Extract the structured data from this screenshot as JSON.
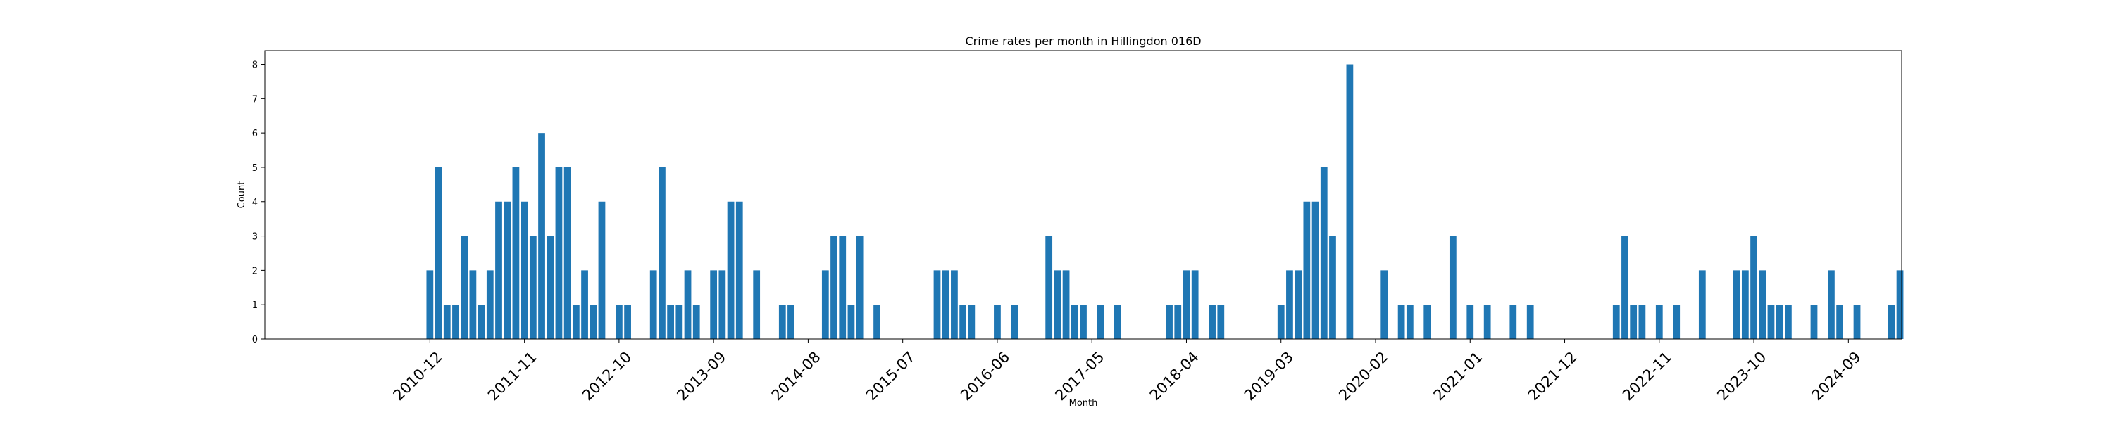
{
  "chart_data": {
    "type": "bar",
    "title": "Crime rates per month in Hillingdon 016D",
    "xlabel": "Month",
    "ylabel": "Count",
    "ylim": [
      0,
      8.4
    ],
    "yticks": [
      0,
      1,
      2,
      3,
      4,
      5,
      6,
      7,
      8
    ],
    "xlim": [
      -19.2,
      171.2
    ],
    "color": "#1f77b4",
    "grid": false,
    "legend": "none",
    "xtick_labels": [
      {
        "label": "2010-12",
        "index": 0
      },
      {
        "label": "2011-11",
        "index": 11
      },
      {
        "label": "2012-10",
        "index": 22
      },
      {
        "label": "2013-09",
        "index": 33
      },
      {
        "label": "2014-08",
        "index": 44
      },
      {
        "label": "2015-07",
        "index": 55
      },
      {
        "label": "2016-06",
        "index": 66
      },
      {
        "label": "2017-05",
        "index": 77
      },
      {
        "label": "2018-04",
        "index": 88
      },
      {
        "label": "2019-03",
        "index": 99
      },
      {
        "label": "2020-02",
        "index": 110
      },
      {
        "label": "2021-01",
        "index": 121
      },
      {
        "label": "2021-12",
        "index": 132
      },
      {
        "label": "2022-11",
        "index": 143
      },
      {
        "label": "2023-10",
        "index": 154
      },
      {
        "label": "2024-09",
        "index": 165
      }
    ],
    "first_month": "2010-12",
    "values": [
      2,
      5,
      1,
      1,
      3,
      2,
      1,
      2,
      4,
      4,
      5,
      4,
      3,
      6,
      3,
      5,
      5,
      1,
      2,
      1,
      4,
      0,
      1,
      1,
      0,
      0,
      2,
      5,
      1,
      1,
      2,
      1,
      0,
      2,
      2,
      4,
      4,
      0,
      2,
      0,
      0,
      1,
      1,
      0,
      0,
      0,
      2,
      3,
      3,
      1,
      3,
      0,
      1,
      0,
      0,
      0,
      0,
      0,
      0,
      2,
      2,
      2,
      1,
      1,
      0,
      0,
      1,
      0,
      1,
      0,
      0,
      0,
      3,
      2,
      2,
      1,
      1,
      0,
      1,
      0,
      1,
      0,
      0,
      0,
      0,
      0,
      1,
      1,
      2,
      2,
      0,
      1,
      1,
      0,
      0,
      0,
      0,
      0,
      0,
      1,
      2,
      2,
      4,
      4,
      5,
      3,
      0,
      8,
      0,
      0,
      0,
      2,
      0,
      1,
      1,
      0,
      1,
      0,
      0,
      3,
      0,
      1,
      0,
      1,
      0,
      0,
      1,
      0,
      1,
      0,
      0,
      0,
      0,
      0,
      0,
      0,
      0,
      0,
      1,
      3,
      1,
      1,
      0,
      1,
      0,
      1,
      0,
      0,
      2,
      0,
      0,
      0,
      2,
      2,
      3,
      2,
      1,
      1,
      1,
      0,
      0,
      1,
      0,
      2,
      1,
      0,
      1,
      0,
      0,
      0,
      1,
      2
    ]
  }
}
